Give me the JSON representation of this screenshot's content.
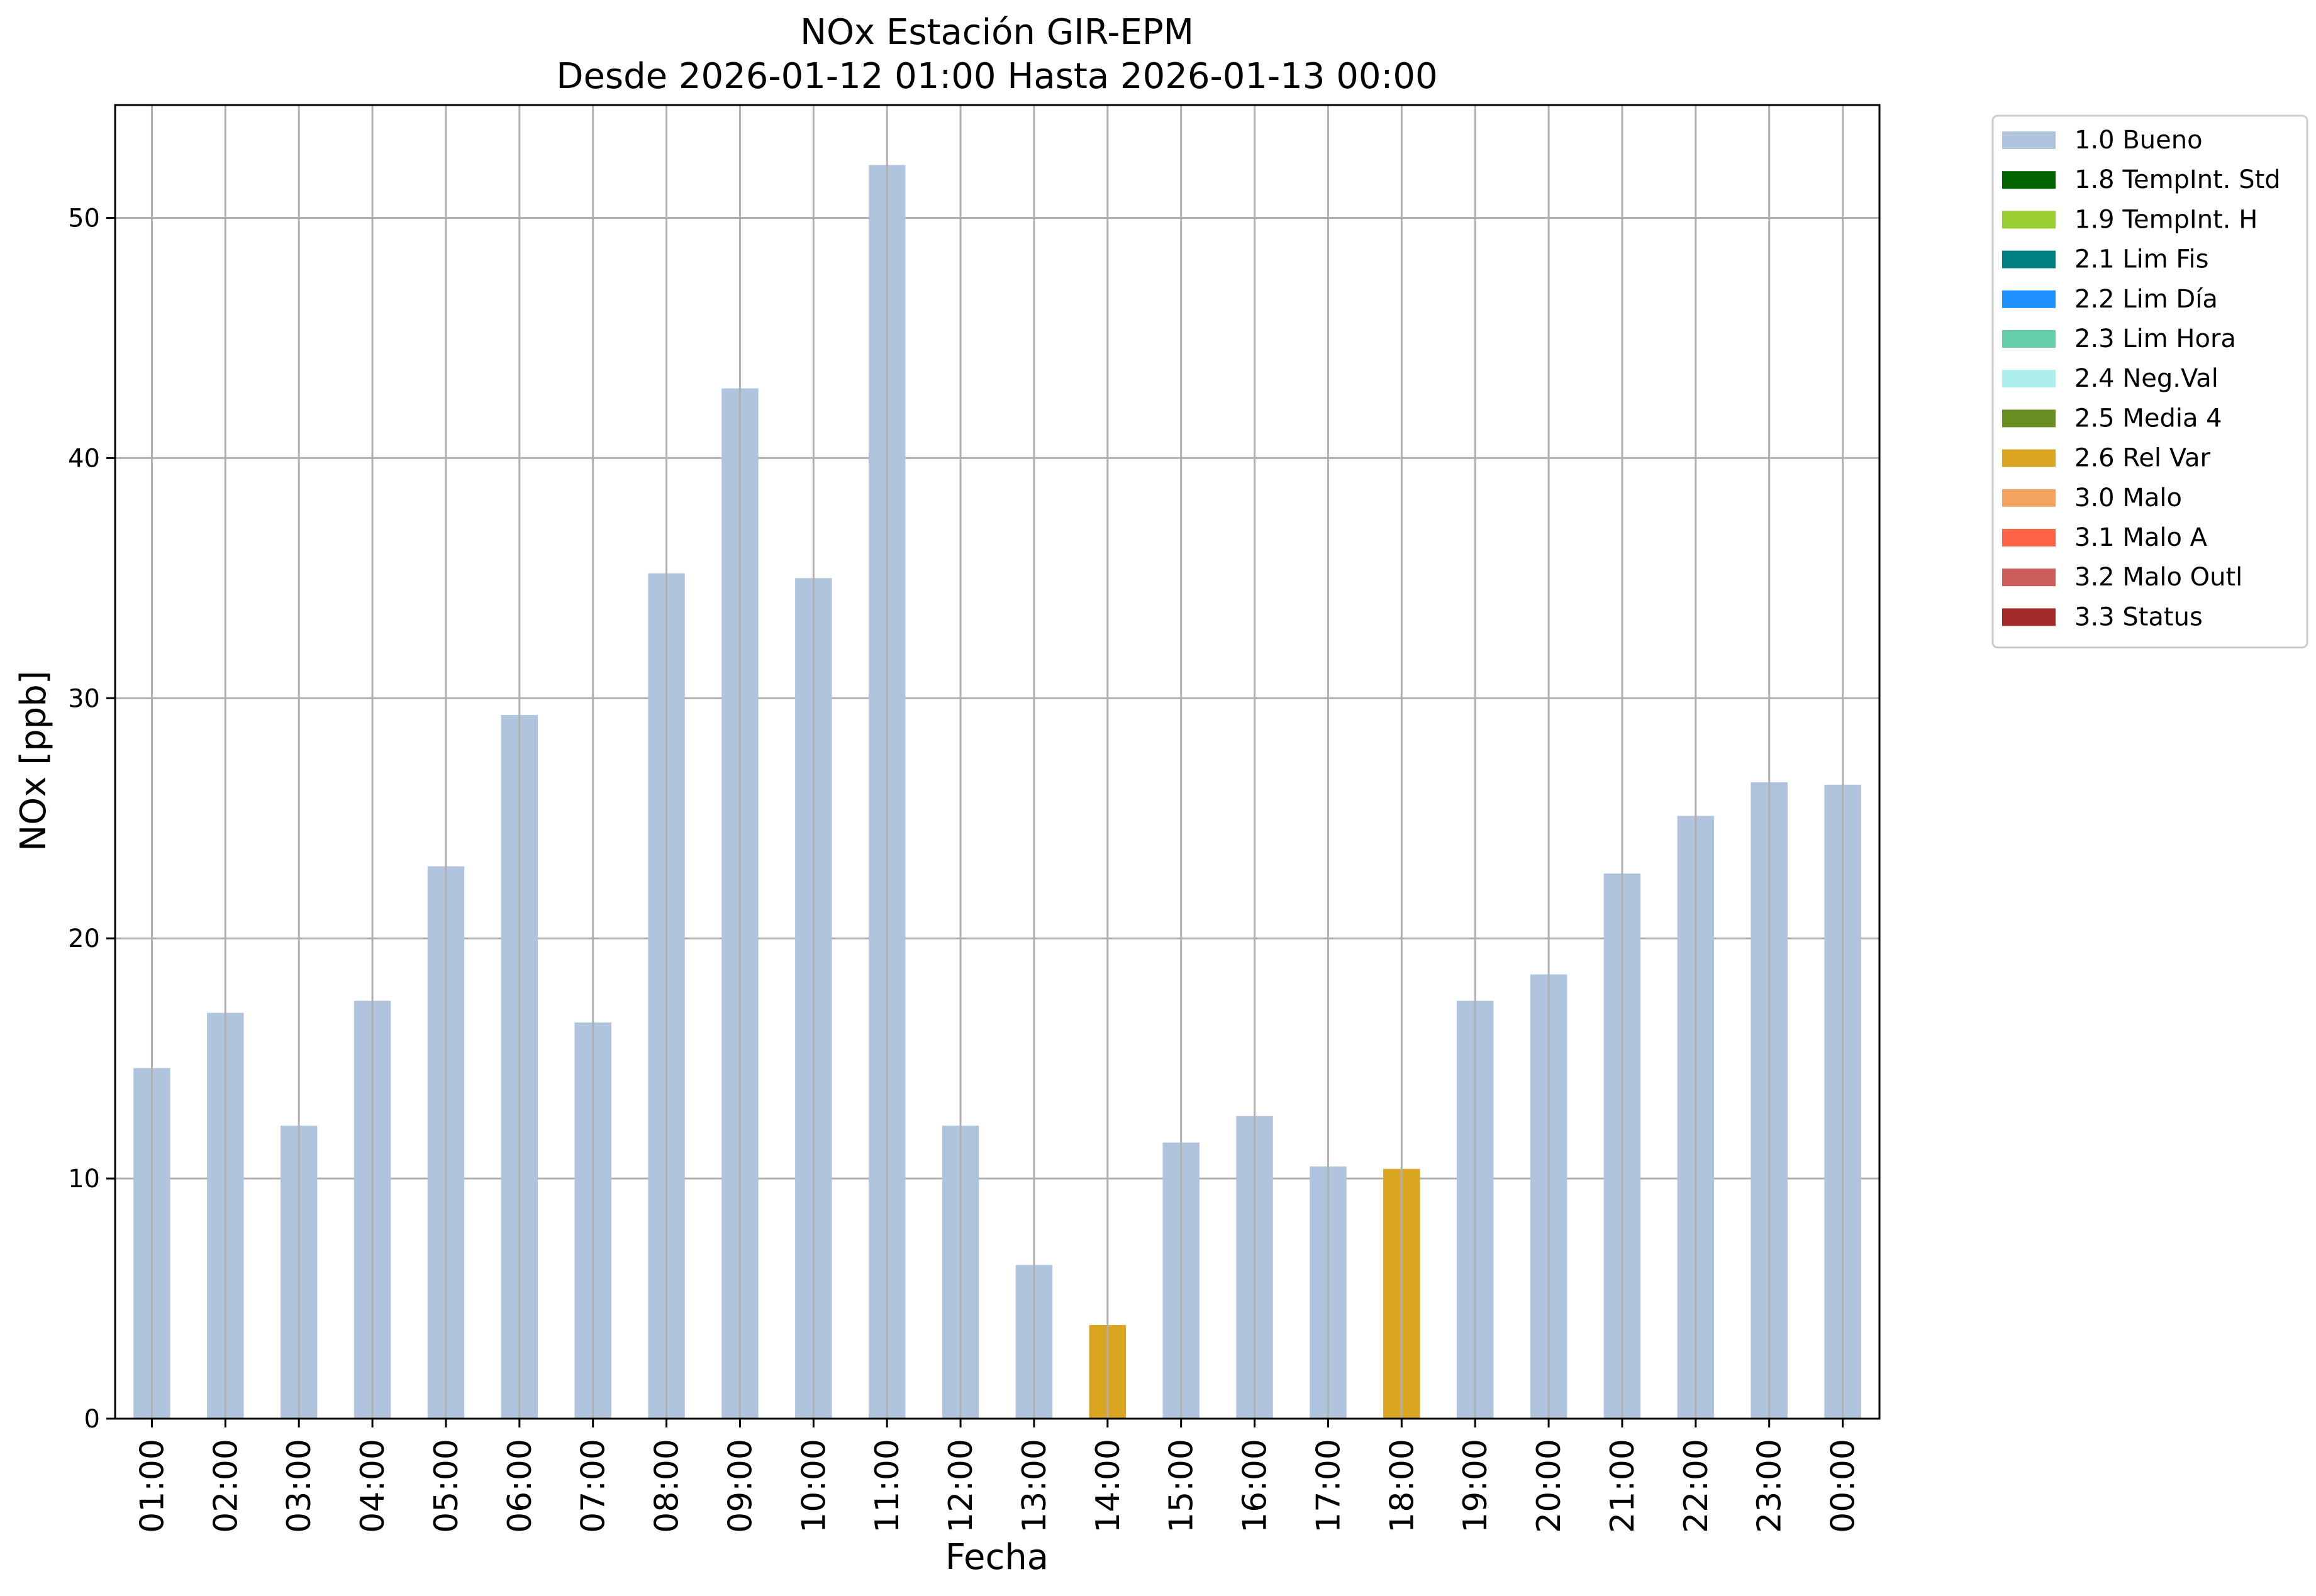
{
  "chart_data": {
    "type": "bar",
    "title": "NOx Estación GIR-EPM",
    "subtitle": "Desde 2026-01-12 01:00 Hasta 2026-01-13 00:00",
    "xlabel": "Fecha",
    "ylabel": "NOx [ppb]",
    "ylim": [
      0,
      54.7
    ],
    "yticks": [
      0,
      10,
      20,
      30,
      40,
      50
    ],
    "grid": true,
    "legend_position": "outside-top-right",
    "categories": [
      "01:00",
      "02:00",
      "03:00",
      "04:00",
      "05:00",
      "06:00",
      "07:00",
      "08:00",
      "09:00",
      "10:00",
      "11:00",
      "12:00",
      "13:00",
      "14:00",
      "15:00",
      "16:00",
      "17:00",
      "18:00",
      "19:00",
      "20:00",
      "21:00",
      "22:00",
      "23:00",
      "00:00"
    ],
    "values": [
      14.6,
      16.9,
      12.2,
      17.4,
      23.0,
      29.3,
      16.5,
      35.2,
      42.9,
      35.0,
      52.2,
      12.2,
      6.4,
      3.9,
      11.5,
      12.6,
      10.5,
      10.4,
      17.4,
      18.5,
      22.7,
      25.1,
      26.5,
      26.4
    ],
    "flags": [
      "1.0 Bueno",
      "1.0 Bueno",
      "1.0 Bueno",
      "1.0 Bueno",
      "1.0 Bueno",
      "1.0 Bueno",
      "1.0 Bueno",
      "1.0 Bueno",
      "1.0 Bueno",
      "1.0 Bueno",
      "1.0 Bueno",
      "1.0 Bueno",
      "1.0 Bueno",
      "2.6 Rel Var",
      "1.0 Bueno",
      "1.0 Bueno",
      "1.0 Bueno",
      "2.6 Rel Var",
      "1.0 Bueno",
      "1.0 Bueno",
      "1.0 Bueno",
      "1.0 Bueno",
      "1.0 Bueno",
      "1.0 Bueno"
    ],
    "legend": [
      {
        "label": "1.0 Bueno",
        "color": "#b0c4de"
      },
      {
        "label": "1.8 TempInt. Std",
        "color": "#006400"
      },
      {
        "label": "1.9 TempInt. H",
        "color": "#9acd32"
      },
      {
        "label": "2.1 Lim Fis",
        "color": "#008080"
      },
      {
        "label": "2.2 Lim Día",
        "color": "#1e90ff"
      },
      {
        "label": "2.3 Lim Hora",
        "color": "#66cdaa"
      },
      {
        "label": "2.4 Neg.Val",
        "color": "#afeeee"
      },
      {
        "label": "2.5 Media 4",
        "color": "#6b8e23"
      },
      {
        "label": "2.6 Rel Var",
        "color": "#daa520"
      },
      {
        "label": "3.0 Malo",
        "color": "#f4a460"
      },
      {
        "label": "3.1 Malo A",
        "color": "#ff6347"
      },
      {
        "label": "3.2 Malo Outl",
        "color": "#cd5c5c"
      },
      {
        "label": "3.3 Status",
        "color": "#a52a2a"
      }
    ]
  }
}
